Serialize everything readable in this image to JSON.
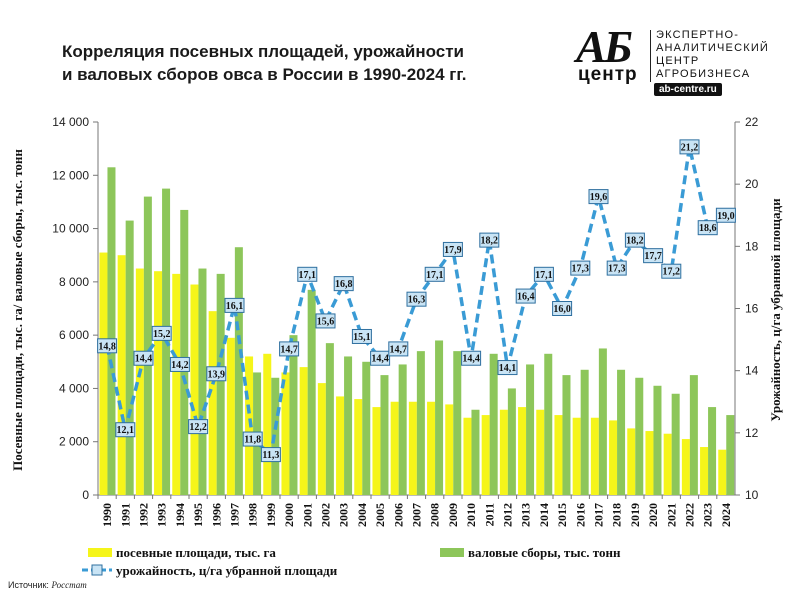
{
  "header": {
    "title_line1": "Корреляция посевных площадей, урожайности",
    "title_line2": "и валовых сборов овса в России в 1990-2024 гг."
  },
  "logo": {
    "mark_top": "АБ",
    "mark_bottom": "центр",
    "lines": [
      "ЭКСПЕРТНО-",
      "АНАЛИТИЧЕСКИЙ",
      "ЦЕНТР",
      "АГРОБИЗНЕСА"
    ],
    "url": "ab-centre.ru"
  },
  "source": {
    "label": "Источник:",
    "name": "Росстат"
  },
  "colors": {
    "area": "#f5f51a",
    "harvest": "#8dc65a",
    "yield_line": "#3a9bd5",
    "yield_marker_fill": "#c9e4f5",
    "yield_marker_stroke": "#2f6f9f"
  },
  "chart_data": {
    "type": "bar",
    "categories": [
      "1990",
      "1991",
      "1992",
      "1993",
      "1994",
      "1995",
      "1996",
      "1997",
      "1998",
      "1999",
      "2000",
      "2001",
      "2002",
      "2003",
      "2004",
      "2005",
      "2006",
      "2007",
      "2008",
      "2009",
      "2010",
      "2011",
      "2012",
      "2013",
      "2014",
      "2015",
      "2016",
      "2017",
      "2018",
      "2019",
      "2020",
      "2021",
      "2022",
      "2023",
      "2024"
    ],
    "series": [
      {
        "name": "посевные площади, тыс. га",
        "type": "bar",
        "axis": "left",
        "values": [
          9100,
          9000,
          8500,
          8400,
          8300,
          7900,
          6900,
          5900,
          5200,
          5300,
          4600,
          4800,
          4200,
          3700,
          3600,
          3300,
          3500,
          3500,
          3500,
          3400,
          2900,
          3000,
          3200,
          3300,
          3200,
          3000,
          2900,
          2900,
          2800,
          2500,
          2400,
          2300,
          2100,
          1800,
          1700
        ]
      },
      {
        "name": "валовые сборы, тыс. тонн",
        "type": "bar",
        "axis": "left",
        "values": [
          12300,
          10300,
          11200,
          11500,
          10700,
          8500,
          8300,
          9300,
          4600,
          4400,
          6000,
          7700,
          5700,
          5200,
          5000,
          4500,
          4900,
          5400,
          5800,
          5400,
          3200,
          5300,
          4000,
          4900,
          5300,
          4500,
          4700,
          5500,
          4700,
          4400,
          4100,
          3800,
          4500,
          3300,
          3000
        ]
      },
      {
        "name": "урожайность, ц/га убранной площади",
        "type": "line",
        "axis": "right",
        "values": [
          14.8,
          12.1,
          14.4,
          15.2,
          14.2,
          12.2,
          13.9,
          16.1,
          11.8,
          11.3,
          14.7,
          17.1,
          15.6,
          16.8,
          15.1,
          14.4,
          14.7,
          16.3,
          17.1,
          17.9,
          14.4,
          18.2,
          14.1,
          16.4,
          17.1,
          16.0,
          17.3,
          19.6,
          17.3,
          18.2,
          17.7,
          17.2,
          21.2,
          18.6,
          19.0
        ],
        "labels": [
          "14,8",
          "12,1",
          "14,4",
          "15,2",
          "14,2",
          "12,2",
          "13,9",
          "16,1",
          "11,8",
          "11,3",
          "14,7",
          "17,1",
          "15,6",
          "16,8",
          "15,1",
          "14,4",
          "14,7",
          "16,3",
          "17,1",
          "17,9",
          "14,4",
          "18,2",
          "14,1",
          "16,4",
          "17,1",
          "16,0",
          "17,3",
          "19,6",
          "17,3",
          "18,2",
          "17,7",
          "17,2",
          "21,2",
          "18,6",
          "19,0"
        ]
      }
    ],
    "ylabel_left": "Посевные площади, тыс. га/ валовые сборы, тыс. тонн",
    "ylabel_right": "Урожайность, ц/га убранной площади",
    "ylim_left": [
      0,
      14000
    ],
    "ylim_right": [
      10,
      22
    ],
    "yticks_left": [
      "0",
      "2 000",
      "4 000",
      "6 000",
      "8 000",
      "10 000",
      "12 000",
      "14 000"
    ],
    "yticks_right": [
      "10",
      "12",
      "14",
      "16",
      "18",
      "20",
      "22"
    ],
    "grid": false,
    "legend_position": "bottom"
  }
}
